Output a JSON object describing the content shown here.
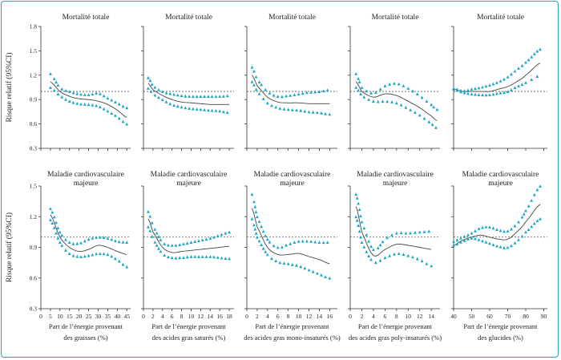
{
  "y_axis_label": "Risque relatif (95%CI)",
  "colors": {
    "ci": "#1aa6c3",
    "estimate": "#444444",
    "reference": "#555555",
    "frame": "#2aa3b8"
  },
  "rows": [
    {
      "ylim": [
        0.3,
        1.8
      ],
      "yticks": [
        "0.3",
        "0.6",
        "0.9",
        "1.2",
        "1.5",
        "1.8"
      ]
    },
    {
      "ylim": [
        0.3,
        1.5
      ],
      "yticks": [
        "0.3",
        "0.6",
        "0.9",
        "1.2",
        "1.5"
      ]
    }
  ],
  "columns": [
    {
      "xlim": [
        0,
        47
      ],
      "xticks": [
        "0",
        "5",
        "10",
        "15",
        "20",
        "25",
        "30",
        "35",
        "40",
        "45"
      ],
      "xlabel": [
        "Part de l’énergie provenant",
        "des graisses (%)"
      ]
    },
    {
      "xlim": [
        0,
        19
      ],
      "xticks": [
        "0",
        "2",
        "4",
        "6",
        "8",
        "10",
        "12",
        "14",
        "16",
        "18"
      ],
      "xlabel": [
        "Part de l’énergie provenant",
        "des acides gras saturés (%)"
      ]
    },
    {
      "xlim": [
        0,
        17.5
      ],
      "xticks": [
        "0",
        "2",
        "4",
        "6",
        "8",
        "10",
        "12",
        "14",
        "16"
      ],
      "xlabel": [
        "Part de l’énergie provenant",
        "des acides gras mono-insaturés (%)"
      ]
    },
    {
      "xlim": [
        0,
        15.5
      ],
      "xticks": [
        "0",
        "2",
        "4",
        "6",
        "8",
        "10",
        "12",
        "14"
      ],
      "xlabel": [
        "Part de l’énergie provenant",
        "des acides gras poly-insaturés (%)"
      ]
    },
    {
      "xlim": [
        40,
        92
      ],
      "xticks": [
        "40",
        "50",
        "60",
        "70",
        "80",
        "90"
      ],
      "xlabel": [
        "Part de l’énergie provenant",
        "des glucides (%)"
      ]
    }
  ],
  "chart_data": [
    {
      "type": "line",
      "row": 0,
      "col": 0,
      "title": [
        "Mortalité totale"
      ],
      "x": [
        5,
        10,
        15,
        20,
        25,
        30,
        35,
        40,
        45
      ],
      "series": [
        {
          "role": "estimate",
          "values": [
            1.12,
            1.0,
            0.94,
            0.91,
            0.9,
            0.88,
            0.84,
            0.77,
            0.68
          ]
        },
        {
          "role": "upper",
          "values": [
            1.22,
            1.05,
            1.0,
            0.97,
            0.96,
            0.98,
            0.92,
            0.86,
            0.8
          ]
        },
        {
          "role": "lower",
          "values": [
            1.05,
            0.95,
            0.88,
            0.85,
            0.84,
            0.82,
            0.76,
            0.69,
            0.6
          ]
        }
      ]
    },
    {
      "type": "line",
      "row": 0,
      "col": 1,
      "title": [
        "Mortalité totale"
      ],
      "x": [
        1,
        2,
        4,
        6,
        8,
        10,
        12,
        14,
        16,
        18
      ],
      "series": [
        {
          "role": "estimate",
          "values": [
            1.1,
            1.02,
            0.95,
            0.9,
            0.87,
            0.86,
            0.85,
            0.84,
            0.84,
            0.84
          ]
        },
        {
          "role": "upper",
          "values": [
            1.17,
            1.07,
            1.0,
            0.97,
            0.95,
            0.94,
            0.94,
            0.94,
            0.94,
            0.95
          ]
        },
        {
          "role": "lower",
          "values": [
            1.04,
            0.97,
            0.9,
            0.84,
            0.81,
            0.79,
            0.78,
            0.77,
            0.76,
            0.74
          ]
        }
      ]
    },
    {
      "type": "line",
      "row": 0,
      "col": 2,
      "title": [
        "Mortalité totale"
      ],
      "x": [
        1,
        2,
        4,
        6,
        8,
        10,
        12,
        14,
        16
      ],
      "series": [
        {
          "role": "estimate",
          "values": [
            1.2,
            1.07,
            0.93,
            0.87,
            0.86,
            0.86,
            0.85,
            0.85,
            0.85
          ]
        },
        {
          "role": "upper",
          "values": [
            1.3,
            1.15,
            1.0,
            0.94,
            0.95,
            0.97,
            0.99,
            1.0,
            1.02
          ]
        },
        {
          "role": "lower",
          "values": [
            1.12,
            1.0,
            0.86,
            0.8,
            0.78,
            0.77,
            0.75,
            0.74,
            0.72
          ]
        }
      ]
    },
    {
      "type": "line",
      "row": 0,
      "col": 3,
      "title": [
        "Mortalité totale"
      ],
      "x": [
        1,
        2,
        4,
        6,
        8,
        10,
        12,
        14,
        15
      ],
      "series": [
        {
          "role": "estimate",
          "values": [
            1.12,
            1.0,
            0.93,
            0.97,
            0.95,
            0.88,
            0.8,
            0.7,
            0.64
          ]
        },
        {
          "role": "upper",
          "values": [
            1.22,
            1.05,
            0.98,
            1.07,
            1.1,
            1.04,
            0.95,
            0.84,
            0.78
          ]
        },
        {
          "role": "lower",
          "values": [
            1.05,
            0.95,
            0.88,
            0.88,
            0.86,
            0.79,
            0.71,
            0.61,
            0.55
          ]
        }
      ]
    },
    {
      "type": "line",
      "row": 0,
      "col": 4,
      "title": [
        "Mortalité totale"
      ],
      "x": [
        40,
        45,
        50,
        55,
        60,
        65,
        70,
        75,
        80,
        88
      ],
      "series": [
        {
          "role": "estimate",
          "values": [
            1.03,
            1.0,
            1.0,
            1.0,
            1.0,
            1.03,
            1.06,
            1.12,
            1.2,
            1.35
          ]
        },
        {
          "role": "upper",
          "values": [
            1.04,
            1.01,
            1.03,
            1.05,
            1.08,
            1.12,
            1.18,
            1.27,
            1.36,
            1.52
          ]
        },
        {
          "role": "lower",
          "values": [
            1.03,
            0.99,
            0.97,
            0.96,
            0.96,
            0.98,
            1.0,
            1.06,
            1.11,
            1.2
          ]
        }
      ]
    },
    {
      "type": "line",
      "row": 1,
      "col": 0,
      "title": [
        "Maladie cardiovasculaire",
        "majeure"
      ],
      "x": [
        5,
        10,
        15,
        20,
        25,
        30,
        35,
        40,
        45
      ],
      "series": [
        {
          "role": "estimate",
          "values": [
            1.22,
            1.0,
            0.9,
            0.86,
            0.88,
            0.92,
            0.9,
            0.86,
            0.83
          ]
        },
        {
          "role": "upper",
          "values": [
            1.28,
            1.05,
            0.95,
            0.94,
            0.98,
            1.0,
            0.99,
            0.96,
            0.95
          ]
        },
        {
          "role": "lower",
          "values": [
            1.17,
            0.95,
            0.84,
            0.81,
            0.82,
            0.84,
            0.83,
            0.78,
            0.71
          ]
        }
      ]
    },
    {
      "type": "line",
      "row": 1,
      "col": 1,
      "title": [
        "Maladie cardiovasculaire",
        "majeure"
      ],
      "x": [
        1,
        2,
        4,
        6,
        8,
        10,
        12,
        14,
        16,
        18
      ],
      "series": [
        {
          "role": "estimate",
          "values": [
            1.18,
            1.05,
            0.9,
            0.85,
            0.86,
            0.87,
            0.88,
            0.89,
            0.9,
            0.91
          ]
        },
        {
          "role": "upper",
          "values": [
            1.25,
            1.11,
            0.95,
            0.92,
            0.93,
            0.95,
            0.97,
            0.99,
            1.02,
            1.05
          ]
        },
        {
          "role": "lower",
          "values": [
            1.1,
            0.98,
            0.84,
            0.8,
            0.8,
            0.81,
            0.81,
            0.81,
            0.8,
            0.79
          ]
        }
      ]
    },
    {
      "type": "line",
      "row": 1,
      "col": 2,
      "title": [
        "Maladie cardiovasculaire",
        "majeure"
      ],
      "x": [
        1,
        2,
        4,
        6,
        8,
        10,
        12,
        14,
        16
      ],
      "series": [
        {
          "role": "estimate",
          "values": [
            1.28,
            1.1,
            0.9,
            0.83,
            0.83,
            0.84,
            0.81,
            0.78,
            0.74
          ]
        },
        {
          "role": "upper",
          "values": [
            1.42,
            1.2,
            0.98,
            0.9,
            0.93,
            0.96,
            0.96,
            0.95,
            0.95
          ]
        },
        {
          "role": "lower",
          "values": [
            1.18,
            1.0,
            0.83,
            0.76,
            0.74,
            0.72,
            0.68,
            0.64,
            0.6
          ]
        }
      ]
    },
    {
      "type": "line",
      "row": 1,
      "col": 3,
      "title": [
        "Maladie cardiovasculaire",
        "majeure"
      ],
      "x": [
        1,
        2,
        4,
        6,
        8,
        10,
        12,
        14
      ],
      "series": [
        {
          "role": "estimate",
          "values": [
            1.3,
            1.05,
            0.82,
            0.88,
            0.93,
            0.92,
            0.9,
            0.88
          ]
        },
        {
          "role": "upper",
          "values": [
            1.42,
            1.15,
            0.88,
            0.98,
            1.04,
            1.04,
            1.05,
            1.06
          ]
        },
        {
          "role": "lower",
          "values": [
            1.2,
            0.95,
            0.76,
            0.8,
            0.84,
            0.82,
            0.78,
            0.72
          ]
        }
      ]
    },
    {
      "type": "line",
      "row": 1,
      "col": 4,
      "title": [
        "Maladie cardiovasculaire",
        "majeure"
      ],
      "x": [
        40,
        45,
        50,
        55,
        60,
        65,
        70,
        75,
        80,
        88
      ],
      "series": [
        {
          "role": "estimate",
          "values": [
            0.92,
            0.97,
            1.0,
            1.02,
            1.0,
            0.98,
            0.98,
            1.05,
            1.15,
            1.32
          ]
        },
        {
          "role": "upper",
          "values": [
            0.96,
            1.0,
            1.04,
            1.09,
            1.1,
            1.07,
            1.06,
            1.13,
            1.26,
            1.5
          ]
        },
        {
          "role": "lower",
          "values": [
            0.92,
            0.96,
            0.99,
            0.97,
            0.94,
            0.91,
            0.9,
            0.96,
            1.05,
            1.18
          ]
        }
      ]
    }
  ]
}
